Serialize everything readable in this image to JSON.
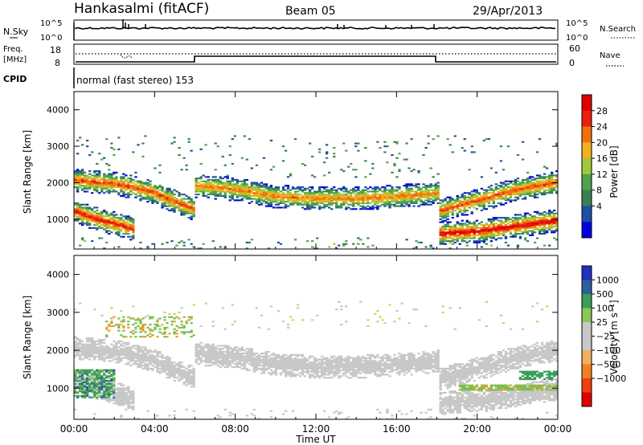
{
  "header": {
    "station": "Hankasalmi (fitACF)",
    "beam": "Beam 05",
    "date": "29/Apr/2013"
  },
  "top_panels": {
    "nsky_label": "N.Sky",
    "nsky_ticks": [
      "10^5",
      "10^0"
    ],
    "nsearch_label": "N.Search",
    "nsearch_ticks": [
      "10^5",
      "10^0"
    ],
    "freq_label_1": "Freq.",
    "freq_label_2": "[MHz]",
    "freq_ticks": [
      "18",
      "8"
    ],
    "nave_label": "Nave",
    "nave_ticks": [
      "60",
      "0"
    ],
    "cpid_label": "CPID",
    "cpid_text": "normal (fast stereo) 153"
  },
  "colors": {
    "power": [
      "#0000e0",
      "#1f4ea6",
      "#3a7f52",
      "#4fa24f",
      "#a2c63a",
      "#f0b020",
      "#f07010",
      "#e82010",
      "#e00000"
    ],
    "velocity": [
      "#e00000",
      "#f04010",
      "#f08020",
      "#f0b060",
      "#c8c8c8",
      "#c8c8c8",
      "#88c858",
      "#3c9c5c",
      "#2e5e9c",
      "#2030c0"
    ],
    "ground": "#c8c8c8"
  },
  "chart_data": [
    {
      "type": "heatmap",
      "title": "Power",
      "colorbar_label": "Power [dB]",
      "colorbar_ticks": [
        "28",
        "24",
        "20",
        "16",
        "12",
        "8",
        "4"
      ],
      "ylabel": "Slant Range [km]",
      "yticks": [
        "4000",
        "3000",
        "2000",
        "1000"
      ],
      "ylim": [
        180,
        4500
      ],
      "xlim": [
        0,
        24
      ],
      "x_unit": "hours UT",
      "echo_bands": [
        {
          "t": [
            0,
            1,
            2,
            3,
            4,
            5,
            6
          ],
          "center_km": [
            2050,
            2000,
            1950,
            1850,
            1700,
            1450,
            1250
          ],
          "peak_db": 24
        },
        {
          "t": [
            0,
            1,
            2,
            3
          ],
          "center_km": [
            1200,
            1000,
            850,
            700
          ],
          "peak_db": 26
        },
        {
          "t": [
            6,
            8,
            10,
            12,
            14,
            16,
            18
          ],
          "center_km": [
            1900,
            1800,
            1600,
            1550,
            1550,
            1600,
            1700
          ],
          "peak_db": 22
        },
        {
          "t": [
            18,
            19,
            20,
            22,
            24
          ],
          "center_km": [
            1200,
            1350,
            1500,
            1800,
            2000
          ],
          "peak_db": 24
        },
        {
          "t": [
            18,
            20,
            22,
            24
          ],
          "center_km": [
            580,
            650,
            800,
            950
          ],
          "peak_db": 28
        }
      ]
    },
    {
      "type": "heatmap",
      "title": "Velocity",
      "colorbar_label": "Velocity [m s⁻¹]",
      "colorbar_ticks": [
        "1000",
        "500",
        "100",
        "25",
        "−25",
        "−100",
        "−500",
        "−1000"
      ],
      "ylabel": "Slant Range [km]",
      "yticks": [
        "4000",
        "3000",
        "2000",
        "1000"
      ],
      "ylim": [
        180,
        4500
      ],
      "xlim": [
        0,
        24
      ],
      "xlabel": "Time UT",
      "xticks": [
        "00:00",
        "04:00",
        "08:00",
        "12:00",
        "16:00",
        "20:00",
        "00:00"
      ]
    }
  ]
}
